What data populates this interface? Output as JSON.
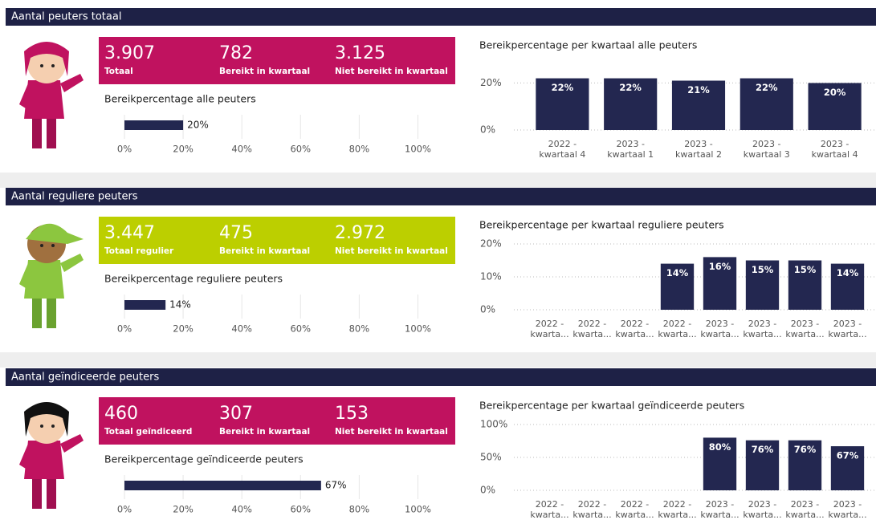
{
  "sections": [
    {
      "title": "Aantal peuters totaal",
      "kpi_color": "#c0125f",
      "kpis": [
        {
          "value": "3.907",
          "label": "Totaal"
        },
        {
          "value": "782",
          "label": "Bereikt in kwartaal"
        },
        {
          "value": "3.125",
          "label": "Niet bereikt in kwartaal"
        }
      ]
    },
    {
      "title": "Aantal reguliere peuters",
      "kpi_color": "#bccf00",
      "kpis": [
        {
          "value": "3.447",
          "label": "Totaal regulier"
        },
        {
          "value": "475",
          "label": "Bereikt in kwartaal"
        },
        {
          "value": "2.972",
          "label": "Niet bereikt in kwartaal"
        }
      ]
    },
    {
      "title": "Aantal geïndiceerde peuters",
      "kpi_color": "#c0125f",
      "kpis": [
        {
          "value": "460",
          "label": "Totaal geïndiceerd"
        },
        {
          "value": "307",
          "label": "Bereikt in kwartaal"
        },
        {
          "value": "153",
          "label": "Niet bereikt in kwartaal"
        }
      ]
    }
  ],
  "chart_data": [
    {
      "type": "barh",
      "title": "Bereikpercentage alle peuters",
      "color": "#232750",
      "values": [
        20
      ],
      "value_labels": [
        "20%"
      ],
      "xlim": [
        0,
        110
      ],
      "xticks": [
        {
          "value": 0,
          "label": "0%"
        },
        {
          "value": 20,
          "label": "20%"
        },
        {
          "value": 40,
          "label": "40%"
        },
        {
          "value": 60,
          "label": "60%"
        },
        {
          "value": 80,
          "label": "80%"
        },
        {
          "value": 100,
          "label": "100%"
        }
      ],
      "grid": true
    },
    {
      "type": "bar",
      "title": "Bereikpercentage per kwartaal alle peuters",
      "color": "#232750",
      "categories": [
        "2022 - kwartaal 4",
        "2023 - kwartaal 1",
        "2023 - kwartaal 2",
        "2023 - kwartaal 3",
        "2023 - kwartaal 4"
      ],
      "values": [
        22,
        22,
        21,
        22,
        20
      ],
      "value_labels": [
        "22%",
        "22%",
        "21%",
        "22%",
        "20%"
      ],
      "ylim": [
        0,
        28
      ],
      "yticks": [
        {
          "value": 0,
          "label": "0%"
        },
        {
          "value": 20,
          "label": "20%"
        }
      ],
      "grid": true
    },
    {
      "type": "barh",
      "title": "Bereikpercentage reguliere peuters",
      "color": "#232750",
      "values": [
        14
      ],
      "value_labels": [
        "14%"
      ],
      "xlim": [
        0,
        110
      ],
      "xticks": [
        {
          "value": 0,
          "label": "0%"
        },
        {
          "value": 20,
          "label": "20%"
        },
        {
          "value": 40,
          "label": "40%"
        },
        {
          "value": 60,
          "label": "60%"
        },
        {
          "value": 80,
          "label": "80%"
        },
        {
          "value": 100,
          "label": "100%"
        }
      ],
      "grid": true
    },
    {
      "type": "bar",
      "title": "Bereikpercentage per kwartaal reguliere peuters",
      "color": "#232750",
      "categories": [
        "2022 - kwarta...",
        "2022 - kwarta...",
        "2022 - kwarta...",
        "2022 - kwarta...",
        "2023 - kwarta...",
        "2023 - kwarta...",
        "2023 - kwarta...",
        "2023 - kwarta..."
      ],
      "values": [
        null,
        null,
        null,
        14,
        16,
        15,
        15,
        14
      ],
      "value_labels": [
        null,
        null,
        null,
        "14%",
        "16%",
        "15%",
        "15%",
        "14%"
      ],
      "ylim": [
        0,
        20
      ],
      "yticks": [
        {
          "value": 0,
          "label": "0%"
        },
        {
          "value": 10,
          "label": "10%"
        },
        {
          "value": 20,
          "label": "20%"
        }
      ],
      "grid": true
    },
    {
      "type": "barh",
      "title": "Bereikpercentage geïndiceerde peuters",
      "color": "#232750",
      "values": [
        67
      ],
      "value_labels": [
        "67%"
      ],
      "xlim": [
        0,
        110
      ],
      "xticks": [
        {
          "value": 0,
          "label": "0%"
        },
        {
          "value": 20,
          "label": "20%"
        },
        {
          "value": 40,
          "label": "40%"
        },
        {
          "value": 60,
          "label": "60%"
        },
        {
          "value": 80,
          "label": "80%"
        },
        {
          "value": 100,
          "label": "100%"
        }
      ],
      "grid": true
    },
    {
      "type": "bar",
      "title": "Bereikpercentage per kwartaal geïndiceerde peuters",
      "color": "#232750",
      "categories": [
        "2022 - kwarta...",
        "2022 - kwarta...",
        "2022 - kwarta...",
        "2022 - kwarta...",
        "2023 - kwarta...",
        "2023 - kwarta...",
        "2023 - kwarta...",
        "2023 - kwarta..."
      ],
      "values": [
        null,
        null,
        null,
        null,
        80,
        76,
        76,
        67
      ],
      "value_labels": [
        null,
        null,
        null,
        null,
        "80%",
        "76%",
        "76%",
        "67%"
      ],
      "ylim": [
        0,
        100
      ],
      "yticks": [
        {
          "value": 0,
          "label": "0%"
        },
        {
          "value": 50,
          "label": "50%"
        },
        {
          "value": 100,
          "label": "100%"
        }
      ],
      "grid": true
    }
  ]
}
